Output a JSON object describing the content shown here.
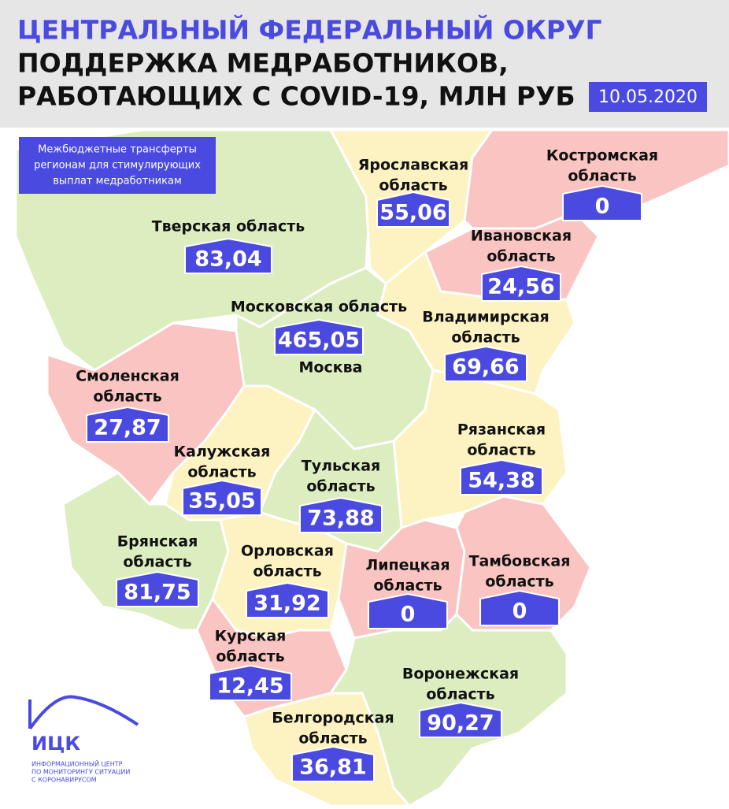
{
  "header": {
    "title_line1": "ЦЕНТРАЛЬНЫЙ ФЕДЕРАЛЬНЫЙ ОКРУГ",
    "title_line2": "ПОДДЕРЖКА МЕДРАБОТНИКОВ,",
    "title_line3": "РАБОТАЮЩИХ С COVID-19, МЛН РУБ",
    "date": "10.05.2020"
  },
  "note": {
    "lines": [
      "Межбюджетные трансферты",
      "регионам для стимулирующих",
      "выплат медработникам"
    ]
  },
  "regions": [
    {
      "name_lines": [
        "Тверская область"
      ],
      "value": "83,04"
    },
    {
      "name_lines": [
        "Ярославская",
        "область"
      ],
      "value": "55,06"
    },
    {
      "name_lines": [
        "Костромская",
        "область"
      ],
      "value": "0"
    },
    {
      "name_lines": [
        "Ивановская",
        "область"
      ],
      "value": "24,56"
    },
    {
      "name_lines": [
        "Московская область"
      ],
      "value": "465,05"
    },
    {
      "name_lines": [
        "Владимирская",
        "область"
      ],
      "value": "69,66"
    },
    {
      "name_lines": [
        "Смоленская",
        "область"
      ],
      "value": "27,87"
    },
    {
      "name_lines": [
        "Калужская",
        "область"
      ],
      "value": "35,05"
    },
    {
      "name_lines": [
        "Тульская",
        "область"
      ],
      "value": "73,88"
    },
    {
      "name_lines": [
        "Рязанская",
        "область"
      ],
      "value": "54,38"
    },
    {
      "name_lines": [
        "Брянская",
        "область"
      ],
      "value": "81,75"
    },
    {
      "name_lines": [
        "Орловская",
        "область"
      ],
      "value": "31,92"
    },
    {
      "name_lines": [
        "Липецкая",
        "область"
      ],
      "value": "0"
    },
    {
      "name_lines": [
        "Тамбовская",
        "область"
      ],
      "value": "0"
    },
    {
      "name_lines": [
        "Курская",
        "область"
      ],
      "value": "12,45"
    },
    {
      "name_lines": [
        "Воронежская",
        "область"
      ],
      "value": "90,27"
    },
    {
      "name_lines": [
        "Белгородская",
        "область"
      ],
      "value": "36,81"
    }
  ],
  "city": "Москва",
  "logo": {
    "abbr": "ИЦК",
    "lines": [
      "ИНФОРМАЦИОННЫЙ ЦЕНТР",
      "ПО МОНИТОРИНГУ СИТУАЦИИ",
      "С КОРОНАВИРУСОМ"
    ]
  }
}
